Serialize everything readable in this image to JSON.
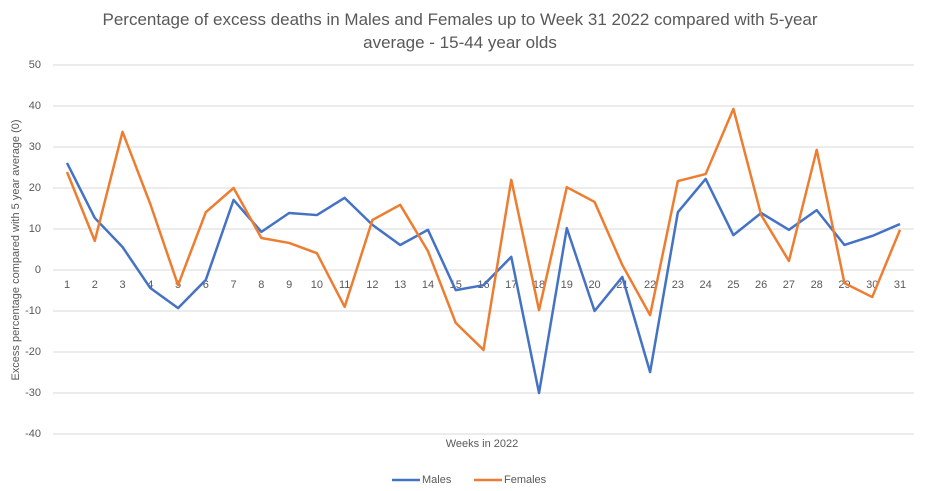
{
  "chart_data": {
    "type": "line",
    "title": "Percentage of excess deaths in Males and Females up to Week 31 2022 compared with 5-year average - 15-44 year olds",
    "x_label": "Weeks in 2022",
    "y_label": "Excess percentage compared with 5 year average (0)",
    "categories": [
      "1",
      "2",
      "3",
      "4",
      "5",
      "6",
      "7",
      "8",
      "9",
      "10",
      "11",
      "12",
      "13",
      "14",
      "15",
      "16",
      "17",
      "18",
      "19",
      "20",
      "21",
      "22",
      "23",
      "24",
      "25",
      "26",
      "27",
      "28",
      "29",
      "30",
      "31"
    ],
    "series": [
      {
        "name": "Males",
        "color": "#4472c4",
        "values": [
          26.1,
          12.7,
          5.6,
          -4.4,
          -9.3,
          -2.4,
          17.1,
          9.3,
          13.9,
          13.4,
          17.6,
          11,
          6.1,
          9.8,
          -4.9,
          -3.7,
          3.2,
          -30,
          10.2,
          -10,
          -1.7,
          -24.9,
          14.1,
          22.2,
          8.5,
          13.9,
          9.8,
          14.6,
          6.1,
          8.3,
          11.2
        ]
      },
      {
        "name": "Females",
        "color": "#ed7d31",
        "values": [
          23.9,
          7.1,
          33.7,
          16.1,
          -3.7,
          14.1,
          20,
          7.8,
          6.6,
          4.1,
          -9,
          12.2,
          15.9,
          4.6,
          -12.9,
          -19.5,
          22,
          -9.8,
          20.2,
          16.6,
          1.2,
          -11,
          21.7,
          23.4,
          39.3,
          13.4,
          2.2,
          29.3,
          -3.2,
          -6.6,
          9.8
        ]
      }
    ],
    "ylim": [
      -40,
      50
    ],
    "yticks": [
      -40,
      -30,
      -20,
      -10,
      0,
      10,
      20,
      30,
      40,
      50
    ],
    "grid": true,
    "legend": "bottom"
  }
}
